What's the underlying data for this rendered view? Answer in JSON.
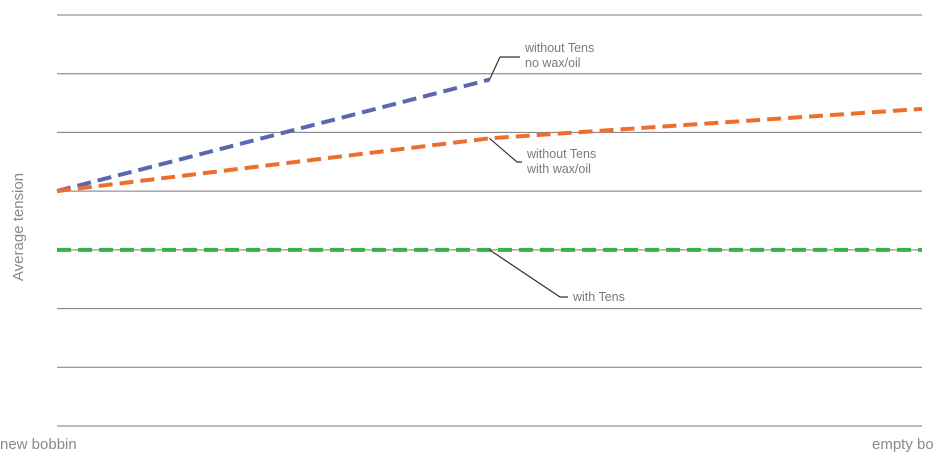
{
  "chart_data": {
    "type": "line",
    "title": "",
    "ylabel": "Average tension",
    "x_ticks": [
      "new bobbin",
      "empty bo"
    ],
    "x": [
      0,
      1
    ],
    "ylim": [
      0,
      7
    ],
    "gridlines": [
      0,
      1,
      2,
      3,
      4,
      5,
      6,
      7
    ],
    "grid": true,
    "legend": "none",
    "series": [
      {
        "name": "without Tens no wax/oil",
        "color": "#5b68b0",
        "points": [
          [
            0,
            4.0
          ],
          [
            0.5,
            5.9
          ]
        ]
      },
      {
        "name": "without Tens with wax/oil",
        "color": "#ed6f2e",
        "points": [
          [
            0,
            4.0
          ],
          [
            0.5,
            4.9
          ],
          [
            1,
            5.4
          ]
        ]
      },
      {
        "name": "with Tens",
        "color": "#39b04a",
        "points": [
          [
            0,
            3.0
          ],
          [
            1,
            3.0
          ]
        ]
      }
    ],
    "annotations": [
      {
        "series": 0,
        "lines": [
          "without Tens",
          "no wax/oil"
        ]
      },
      {
        "series": 1,
        "lines": [
          "without Tens",
          "with wax/oil"
        ]
      },
      {
        "series": 2,
        "lines": [
          "with Tens"
        ]
      }
    ]
  }
}
